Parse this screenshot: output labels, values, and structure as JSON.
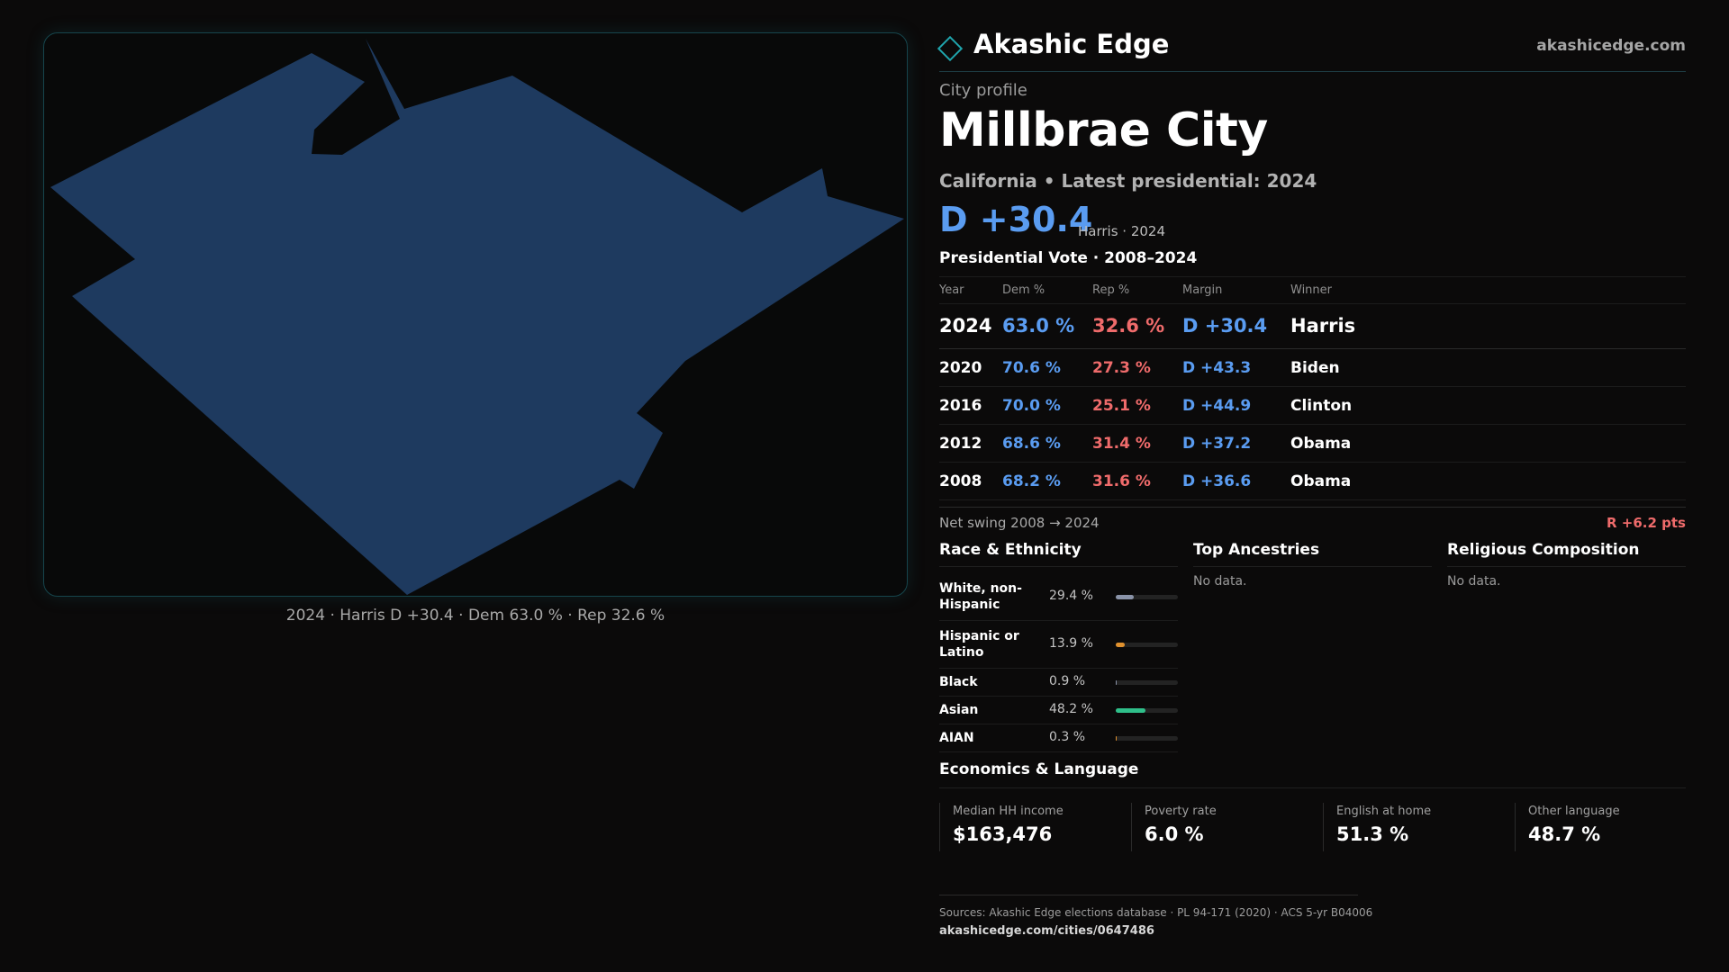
{
  "brand": {
    "name": "Akashic Edge",
    "url": "akashicedge.com"
  },
  "header": {
    "kicker": "City profile",
    "city": "Millbrae City",
    "subline": "California • Latest presidential: 2024",
    "margin": "D +30.4",
    "margin_note": "Harris · 2024"
  },
  "map": {
    "caption": "2024 · Harris D +30.4 · Dem 63.0 % · Rep 32.6 %",
    "fill_color": "#1e3a5f"
  },
  "vote": {
    "title": "Presidential Vote · 2008–2024",
    "headers": {
      "year": "Year",
      "dem": "Dem %",
      "rep": "Rep %",
      "margin": "Margin",
      "winner": "Winner"
    },
    "rows": [
      {
        "year": "2024",
        "dem": "63.0 %",
        "rep": "32.6 %",
        "margin": "D +30.4",
        "winner": "Harris"
      },
      {
        "year": "2020",
        "dem": "70.6 %",
        "rep": "27.3 %",
        "margin": "D +43.3",
        "winner": "Biden"
      },
      {
        "year": "2016",
        "dem": "70.0 %",
        "rep": "25.1 %",
        "margin": "D +44.9",
        "winner": "Clinton"
      },
      {
        "year": "2012",
        "dem": "68.6 %",
        "rep": "31.4 %",
        "margin": "D +37.2",
        "winner": "Obama"
      },
      {
        "year": "2008",
        "dem": "68.2 %",
        "rep": "31.6 %",
        "margin": "D +36.6",
        "winner": "Obama"
      }
    ],
    "swing_label": "Net swing 2008 → 2024",
    "swing_value": "R +6.2 pts"
  },
  "race": {
    "title": "Race & Ethnicity",
    "rows": [
      {
        "label": "White, non-Hispanic",
        "pct": "29.4 %",
        "share": 29.4,
        "color": "#8a93a8"
      },
      {
        "label": "Hispanic or Latino",
        "pct": "13.9 %",
        "share": 13.9,
        "color": "#e0912e"
      },
      {
        "label": "Black",
        "pct": "0.9 %",
        "share": 0.9,
        "color": "#8a93a8"
      },
      {
        "label": "Asian",
        "pct": "48.2 %",
        "share": 48.2,
        "color": "#2fbf8a"
      },
      {
        "label": "AIAN",
        "pct": "0.3 %",
        "share": 0.3,
        "color": "#e0912e"
      }
    ]
  },
  "ancestries": {
    "title": "Top Ancestries",
    "empty": "No data."
  },
  "religion": {
    "title": "Religious Composition",
    "empty": "No data."
  },
  "economics": {
    "title": "Economics & Language",
    "items": [
      {
        "label": "Median HH income",
        "value": "$163,476"
      },
      {
        "label": "Poverty rate",
        "value": "6.0 %"
      },
      {
        "label": "English at home",
        "value": "51.3 %"
      },
      {
        "label": "Other language",
        "value": "48.7 %"
      }
    ]
  },
  "footer": {
    "sources": "Sources: Akashic Edge elections database · PL 94-171 (2020) · ACS 5-yr B04006",
    "url": "akashicedge.com/cities/0647486"
  }
}
